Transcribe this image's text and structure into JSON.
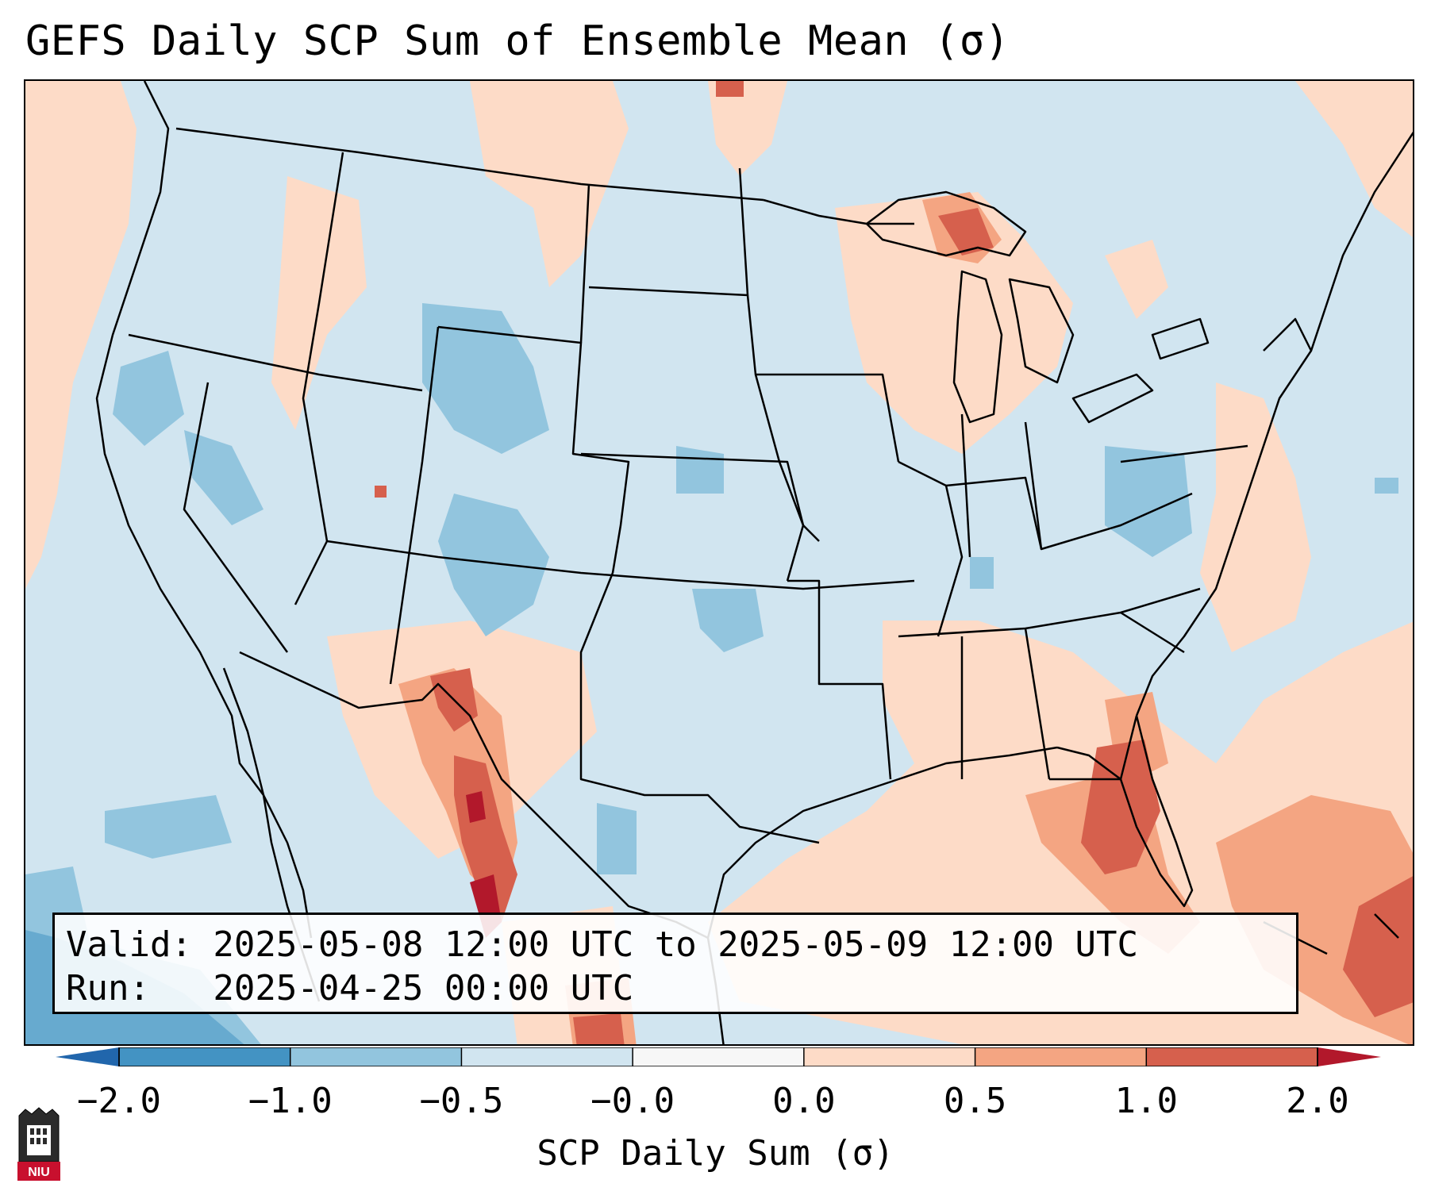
{
  "title": "GEFS Daily SCP Sum of Ensemble Mean (σ)",
  "info": {
    "valid": "Valid: 2025-05-08 12:00 UTC to 2025-05-09 12:00 UTC",
    "run": "Run:   2025-04-25 00:00 UTC"
  },
  "colorbar": {
    "label": "SCP Daily Sum (σ)",
    "ticks": [
      "−2.0",
      "−1.0",
      "−0.5",
      "−0.0",
      "0.0",
      "0.5",
      "1.0",
      "2.0"
    ],
    "colors": [
      "#4393c3",
      "#92c5de",
      "#d1e5f0",
      "#f7f7f7",
      "#fddbc7",
      "#f4a582",
      "#d6604d"
    ],
    "extend_low_color": "#2166ac",
    "extend_high_color": "#b2182b"
  },
  "logo": {
    "text": "NIU"
  }
}
